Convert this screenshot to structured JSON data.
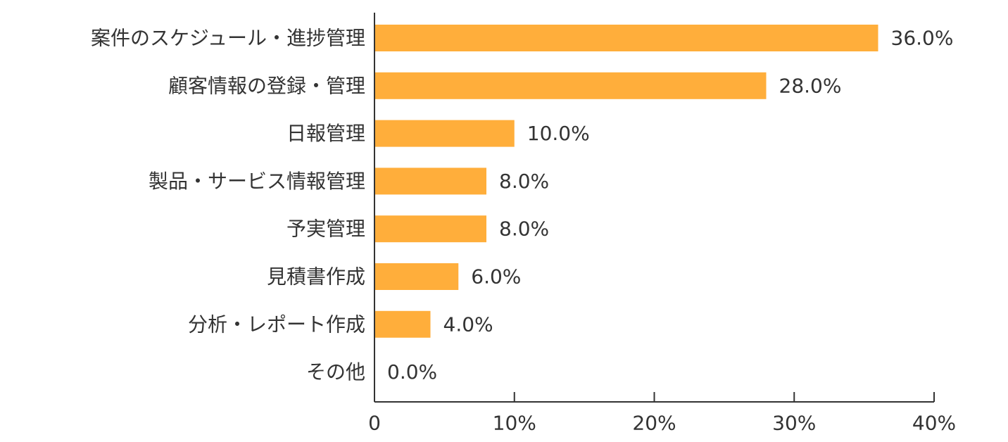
{
  "chart_data": {
    "type": "bar",
    "orientation": "horizontal",
    "categories": [
      "案件のスケジュール・進捗管理",
      "顧客情報の登録・管理",
      "日報管理",
      "製品・サービス情報管理",
      "予実管理",
      "見積書作成",
      "分析・レポート作成",
      "その他"
    ],
    "values": [
      36.0,
      28.0,
      10.0,
      8.0,
      8.0,
      6.0,
      4.0,
      0.0
    ],
    "value_labels": [
      "36.0%",
      "28.0%",
      "10.0%",
      "8.0%",
      "8.0%",
      "6.0%",
      "4.0%",
      "0.0%"
    ],
    "xlim": [
      0,
      40
    ],
    "x_ticks": [
      0,
      10,
      20,
      30,
      40
    ],
    "x_tick_labels": [
      "0",
      "10%",
      "20%",
      "30%",
      "40%"
    ],
    "bar_color": "#FFAE3B",
    "axis_color": "#333333",
    "grid": false,
    "legend": "none"
  }
}
